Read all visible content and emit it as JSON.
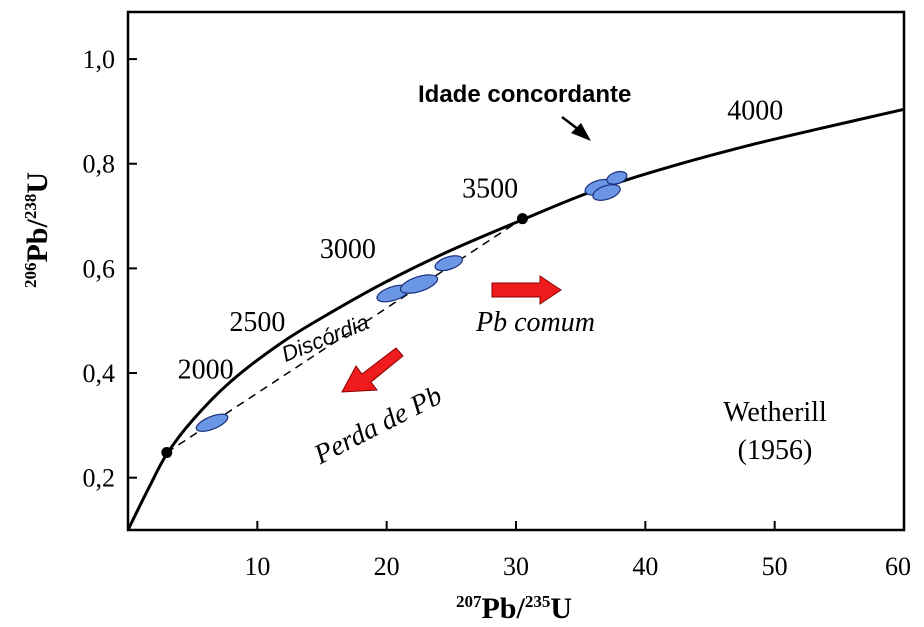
{
  "chart_data": {
    "type": "line",
    "title": "",
    "xlabel": {
      "sup1": "207",
      "main1": "Pb/",
      "sup2": "235",
      "main2": "U"
    },
    "ylabel": {
      "sup1": "206",
      "main1": "Pb/",
      "sup2": "238",
      "main2": "U"
    },
    "xlim": [
      0,
      60
    ],
    "ylim": [
      0.1,
      1.09
    ],
    "x_ticks": [
      {
        "value": 10,
        "label": "10"
      },
      {
        "value": 20,
        "label": "20"
      },
      {
        "value": 30,
        "label": "30"
      },
      {
        "value": 40,
        "label": "40"
      },
      {
        "value": 50,
        "label": "50"
      },
      {
        "value": 60,
        "label": "60"
      }
    ],
    "y_ticks": [
      {
        "value": 0.2,
        "label": "0,2"
      },
      {
        "value": 0.4,
        "label": "0,4"
      },
      {
        "value": 0.6,
        "label": "0,6"
      },
      {
        "value": 0.8,
        "label": "0,8"
      },
      {
        "value": 1.0,
        "label": "1,0"
      }
    ],
    "concordia": {
      "x": [
        0.0,
        1.6,
        3.0,
        5.0,
        8.0,
        12.0,
        16.0,
        20.0,
        25.0,
        30.5,
        36.0,
        42.0,
        48.0,
        54.0,
        60.0
      ],
      "y": [
        0.1,
        0.18,
        0.245,
        0.31,
        0.385,
        0.46,
        0.52,
        0.575,
        0.635,
        0.693,
        0.748,
        0.795,
        0.835,
        0.87,
        0.904
      ]
    },
    "age_labels": [
      {
        "age": "2000",
        "x": 6.0,
        "y": 0.39
      },
      {
        "age": "2500",
        "x": 10.0,
        "y": 0.48
      },
      {
        "age": "3000",
        "x": 17.0,
        "y": 0.62
      },
      {
        "age": "3500",
        "x": 28.0,
        "y": 0.735
      },
      {
        "age": "4000",
        "x": 48.5,
        "y": 0.885
      }
    ],
    "discordia": {
      "label": "Discórdia",
      "lower_intercept": {
        "x": 3.0,
        "y": 0.248
      },
      "upper_intercept": {
        "x": 30.5,
        "y": 0.695
      }
    },
    "ellipses": [
      {
        "x": 6.5,
        "y": 0.305,
        "rx": 1.3,
        "ry": 0.012,
        "angle": -22
      },
      {
        "x": 20.5,
        "y": 0.552,
        "rx": 1.3,
        "ry": 0.013,
        "angle": -18
      },
      {
        "x": 22.5,
        "y": 0.57,
        "rx": 1.5,
        "ry": 0.014,
        "angle": -18
      },
      {
        "x": 24.8,
        "y": 0.61,
        "rx": 1.1,
        "ry": 0.012,
        "angle": -18
      },
      {
        "x": 36.4,
        "y": 0.755,
        "rx": 1.1,
        "ry": 0.013,
        "angle": -18
      },
      {
        "x": 37.0,
        "y": 0.745,
        "rx": 1.1,
        "ry": 0.013,
        "angle": -18
      },
      {
        "x": 37.8,
        "y": 0.773,
        "rx": 0.8,
        "ry": 0.011,
        "angle": -18
      }
    ],
    "annotations": {
      "concordant": "Idade concordante",
      "common_pb": "Pb comum",
      "pb_loss": "Perda de Pb",
      "reference_line1": "Wetherill",
      "reference_line2": "(1956)"
    },
    "colors": {
      "ellipse_fill": "#6b96e6",
      "ellipse_stroke": "#1a2f7a",
      "arrow_red": "#ee1c1c",
      "line": "#000000"
    },
    "grid": false
  }
}
